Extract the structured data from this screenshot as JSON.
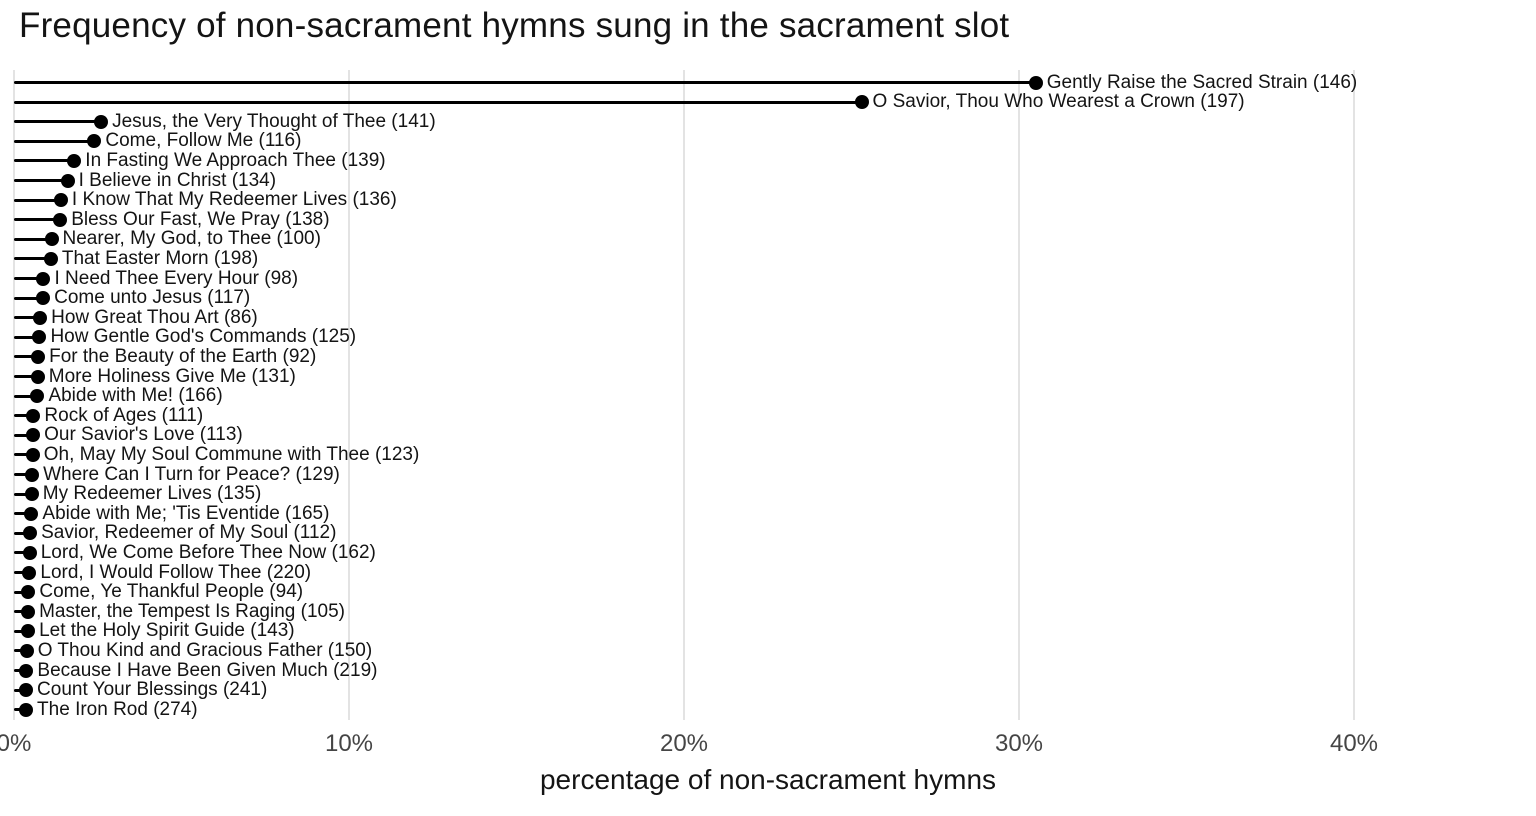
{
  "chart_data": {
    "type": "bar",
    "variant": "horizontal-lollipop",
    "title": "Frequency of non-sacrament hymns sung in the sacrament slot",
    "xlabel": "percentage of non-sacrament hymns",
    "ylabel": "",
    "xlim": [
      0,
      45
    ],
    "grid": "vertical",
    "legend": "none",
    "colors": {
      "stem": "#000000",
      "dot": "#000000",
      "label": "#141414",
      "gridline": "#e3e3e3",
      "tick_label": "#454545",
      "background": "#ffffff"
    },
    "xticks": [
      {
        "value": 0,
        "label": "0%"
      },
      {
        "value": 10,
        "label": "10%"
      },
      {
        "value": 20,
        "label": "20%"
      },
      {
        "value": 30,
        "label": "30%"
      },
      {
        "value": 40,
        "label": "40%"
      }
    ],
    "points": [
      {
        "label": "Gently Raise the Sacred Strain",
        "hymn_number": 146,
        "percent": 30.5
      },
      {
        "label": "O Savior, Thou Who Wearest a Crown",
        "hymn_number": 197,
        "percent": 25.3
      },
      {
        "label": "Jesus, the Very Thought of Thee",
        "hymn_number": 141,
        "percent": 2.6
      },
      {
        "label": "Come, Follow Me",
        "hymn_number": 116,
        "percent": 2.4
      },
      {
        "label": "In Fasting We Approach Thee",
        "hymn_number": 139,
        "percent": 1.8
      },
      {
        "label": "I Believe in Christ",
        "hymn_number": 134,
        "percent": 1.6
      },
      {
        "label": "I Know That My Redeemer Lives",
        "hymn_number": 136,
        "percent": 1.4
      },
      {
        "label": "Bless Our Fast, We Pray",
        "hymn_number": 138,
        "percent": 1.38
      },
      {
        "label": "Nearer, My God, to Thee",
        "hymn_number": 100,
        "percent": 1.12
      },
      {
        "label": "That Easter Morn",
        "hymn_number": 198,
        "percent": 1.1
      },
      {
        "label": "I Need Thee Every Hour",
        "hymn_number": 98,
        "percent": 0.88
      },
      {
        "label": "Come unto Jesus",
        "hymn_number": 117,
        "percent": 0.87
      },
      {
        "label": "How Great Thou Art",
        "hymn_number": 86,
        "percent": 0.78
      },
      {
        "label": "How Gentle God's Commands",
        "hymn_number": 125,
        "percent": 0.76
      },
      {
        "label": "For the Beauty of the Earth",
        "hymn_number": 92,
        "percent": 0.72
      },
      {
        "label": "More Holiness Give Me",
        "hymn_number": 131,
        "percent": 0.71
      },
      {
        "label": "Abide with Me!",
        "hymn_number": 166,
        "percent": 0.7
      },
      {
        "label": "Rock of Ages",
        "hymn_number": 111,
        "percent": 0.58
      },
      {
        "label": "Our Savior's Love",
        "hymn_number": 113,
        "percent": 0.57
      },
      {
        "label": "Oh, May My Soul Commune with Thee",
        "hymn_number": 123,
        "percent": 0.56
      },
      {
        "label": "Where Can I Turn for Peace?",
        "hymn_number": 129,
        "percent": 0.54
      },
      {
        "label": "My Redeemer Lives",
        "hymn_number": 135,
        "percent": 0.53
      },
      {
        "label": "Abide with Me; 'Tis Eventide",
        "hymn_number": 165,
        "percent": 0.52
      },
      {
        "label": "Savior, Redeemer of My Soul",
        "hymn_number": 112,
        "percent": 0.48
      },
      {
        "label": "Lord, We Come Before Thee Now",
        "hymn_number": 162,
        "percent": 0.47
      },
      {
        "label": "Lord, I Would Follow Thee",
        "hymn_number": 220,
        "percent": 0.46
      },
      {
        "label": "Come, Ye Thankful People",
        "hymn_number": 94,
        "percent": 0.43
      },
      {
        "label": "Master, the Tempest Is Raging",
        "hymn_number": 105,
        "percent": 0.42
      },
      {
        "label": "Let the Holy Spirit Guide",
        "hymn_number": 143,
        "percent": 0.42
      },
      {
        "label": "O Thou Kind and Gracious Father",
        "hymn_number": 150,
        "percent": 0.38
      },
      {
        "label": "Because I Have Been Given Much",
        "hymn_number": 219,
        "percent": 0.37
      },
      {
        "label": "Count Your Blessings",
        "hymn_number": 241,
        "percent": 0.36
      },
      {
        "label": "The Iron Rod",
        "hymn_number": 274,
        "percent": 0.36
      }
    ]
  }
}
